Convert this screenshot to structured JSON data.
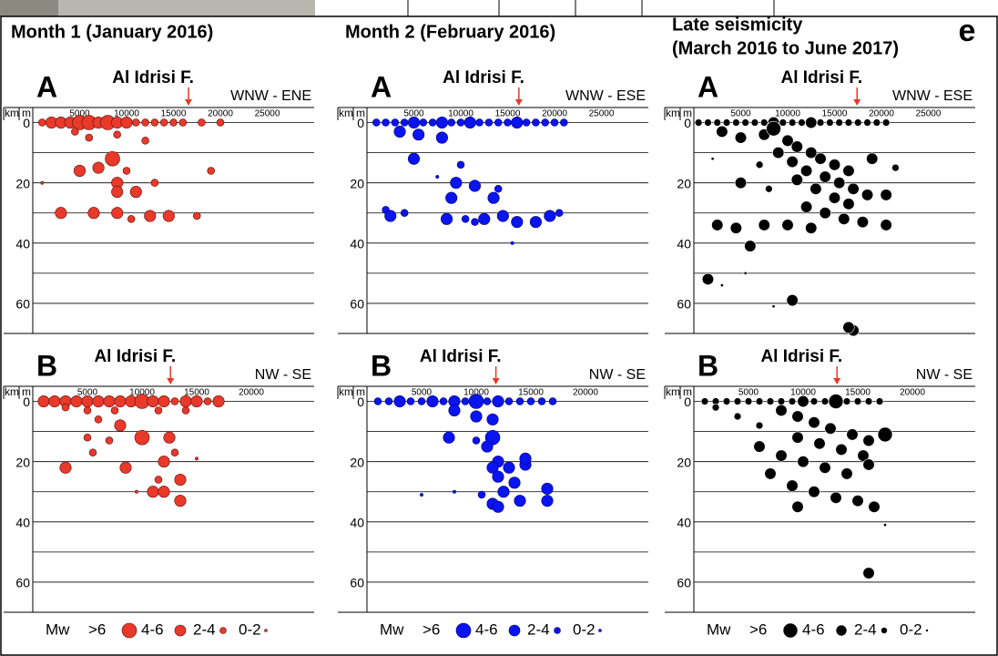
{
  "panel_label": "e",
  "columns": [
    {
      "title": [
        "Month 1 (January 2016)"
      ]
    },
    {
      "title": [
        "Month 2 (February 2016)"
      ]
    },
    {
      "title": [
        "Late seismicity",
        "(March 2016 to June 2017)"
      ]
    }
  ],
  "legend": {
    "title": "Mw",
    "classes": [
      ">6",
      "4-6",
      "2-4",
      "0-2"
    ]
  },
  "chart_data": [
    {
      "type": "scatter",
      "title": "A",
      "fault_label": "Al Idrisi F.",
      "direction": "WNW - ENE",
      "x_label": "m",
      "y_label": "km",
      "xlim": [
        0,
        30000
      ],
      "ylim": [
        -5,
        70
      ],
      "invert_y": true,
      "xticks": [
        5000,
        10000,
        15000,
        20000,
        25000
      ],
      "yticks": [
        0,
        20,
        40,
        60
      ],
      "ygrid": [
        0,
        10,
        20,
        30,
        40,
        50,
        60
      ],
      "fault_x": 16600,
      "color": "#e8392a",
      "edge_color": "#5a0f0a",
      "x": [
        1000,
        2000,
        3000,
        4000,
        5000,
        6000,
        7000,
        8000,
        9000,
        10000,
        11000,
        12000,
        13000,
        14000,
        15000,
        16000,
        18000,
        20000,
        4500,
        6000,
        9000,
        12000,
        8500,
        7000,
        5000,
        10000,
        19000,
        1000,
        9000,
        13000,
        9000,
        11000,
        3000,
        6500,
        9000,
        12500,
        14500,
        17500,
        10500
      ],
      "values": [
        0,
        0,
        0,
        0,
        0,
        0,
        0,
        0,
        0,
        0,
        0,
        0,
        0,
        0,
        0,
        0,
        0,
        0,
        3,
        5,
        4,
        6,
        12,
        15,
        16,
        16,
        16,
        20,
        20,
        20,
        23,
        23,
        30,
        30,
        30,
        31,
        31,
        31,
        32
      ],
      "sizes": [
        3,
        5,
        5,
        5,
        6.5,
        6.5,
        5,
        6.5,
        5,
        5,
        3,
        3,
        3,
        3,
        3,
        3,
        3,
        3,
        3,
        3,
        3,
        3,
        6.5,
        5,
        5,
        3,
        3,
        1,
        5,
        3,
        5,
        5,
        5,
        5,
        5,
        5,
        5,
        3,
        3
      ]
    },
    {
      "type": "scatter",
      "title": "A",
      "fault_label": "Al Idrisi F.",
      "direction": "WNW - ESE",
      "x_label": "m",
      "y_label": "km",
      "xlim": [
        0,
        30000
      ],
      "ylim": [
        -5,
        70
      ],
      "invert_y": true,
      "xticks": [
        5000,
        10000,
        15000,
        20000,
        25000
      ],
      "yticks": [
        0,
        20,
        40,
        60
      ],
      "ygrid": [
        0,
        10,
        20,
        30,
        40,
        50,
        60
      ],
      "fault_x": 16200,
      "color": "#0a14f0",
      "edge_color": "#00006e",
      "x": [
        1000,
        2000,
        3000,
        4000,
        5000,
        6000,
        7000,
        8000,
        9000,
        10000,
        11000,
        12000,
        13000,
        14000,
        15000,
        16000,
        17000,
        18000,
        19000,
        20000,
        21000,
        3500,
        5500,
        8000,
        5000,
        7500,
        10000,
        9500,
        11500,
        14000,
        9000,
        13500,
        2000,
        2500,
        8500,
        10500,
        12500,
        14500,
        16000,
        18000,
        19500,
        20500,
        15500,
        4000,
        11500
      ],
      "values": [
        0,
        0,
        0,
        0,
        0,
        0,
        0,
        0,
        0,
        0,
        0,
        0,
        0,
        0,
        0,
        0,
        0,
        0,
        0,
        0,
        0,
        3,
        4,
        5,
        12,
        18,
        14,
        20,
        21,
        22,
        25,
        25,
        29,
        31,
        32,
        32,
        32,
        31,
        33,
        33,
        31,
        30,
        40,
        30,
        33
      ],
      "sizes": [
        3,
        3,
        3,
        3,
        5,
        3,
        3,
        5,
        3,
        3,
        5,
        3,
        3,
        3,
        3,
        5,
        3,
        3,
        3,
        3,
        3,
        5,
        5,
        5,
        5,
        1,
        3,
        5,
        5,
        3,
        5,
        5,
        3,
        5,
        5,
        3,
        5,
        5,
        5,
        5,
        5,
        3,
        1,
        3,
        3
      ]
    },
    {
      "type": "scatter",
      "title": "A",
      "fault_label": "Al Idrisi F.",
      "direction": "WNW - ESE",
      "x_label": "m",
      "y_label": "km",
      "xlim": [
        0,
        30000
      ],
      "ylim": [
        -5,
        70
      ],
      "invert_y": true,
      "xticks": [
        5000,
        10000,
        15000,
        20000,
        25000
      ],
      "yticks": [
        0,
        20,
        40,
        60
      ],
      "ygrid": [
        0,
        10,
        20,
        30,
        40,
        50,
        60
      ],
      "fault_x": 17400,
      "color": "#000000",
      "edge_color": "#ffffff",
      "x": [
        500,
        1500,
        2500,
        3500,
        4500,
        5500,
        6500,
        7500,
        8500,
        9500,
        10500,
        11500,
        12500,
        13500,
        14500,
        15500,
        16500,
        17500,
        18500,
        19500,
        20500,
        3000,
        5000,
        7500,
        8500,
        10000,
        11000,
        12500,
        13500,
        15000,
        16500,
        9000,
        10500,
        12000,
        14000,
        15500,
        17000,
        11000,
        13000,
        15000,
        16500,
        18500,
        20500,
        7000,
        5000,
        8000,
        2000,
        12000,
        14000,
        16000,
        18000,
        20500,
        10000,
        7500,
        4500,
        2500,
        12500,
        6000,
        1500,
        5500,
        3000,
        10500,
        8500,
        17000,
        16500,
        21500,
        19000
      ],
      "values": [
        0,
        0,
        0,
        0,
        0,
        0,
        0,
        0,
        0,
        0,
        0,
        0,
        0,
        0,
        0,
        0,
        0,
        0,
        0,
        0,
        0,
        3,
        5,
        4,
        2,
        6,
        8,
        10,
        12,
        14,
        16,
        10,
        13,
        16,
        18,
        20,
        22,
        19,
        22,
        25,
        27,
        24,
        24,
        14,
        20,
        22,
        12,
        28,
        30,
        32,
        33,
        34,
        34,
        34,
        35,
        34,
        35,
        41,
        52,
        50,
        54,
        59,
        61,
        69,
        68,
        15,
        12
      ],
      "sizes": [
        3,
        3,
        3,
        3,
        3,
        3,
        3,
        3,
        5,
        3,
        3,
        3,
        5,
        3,
        3,
        3,
        3,
        3,
        3,
        3,
        3,
        5,
        5,
        5,
        6.5,
        5,
        5,
        5,
        5,
        5,
        5,
        5,
        5,
        5,
        5,
        5,
        5,
        5,
        5,
        5,
        5,
        5,
        5,
        3,
        5,
        3,
        1,
        5,
        5,
        5,
        5,
        5,
        5,
        5,
        5,
        5,
        5,
        5,
        5,
        1,
        1,
        5,
        1,
        5,
        5,
        3,
        5
      ]
    },
    {
      "type": "scatter",
      "title": "B",
      "fault_label": "Al Idrisi F.",
      "direction": "NW - SE",
      "x_label": "m",
      "y_label": "km",
      "xlim": [
        0,
        25750
      ],
      "ylim": [
        -5,
        70
      ],
      "invert_y": true,
      "xticks": [
        5000,
        10000,
        15000,
        20000
      ],
      "yticks": [
        0,
        20,
        40,
        60
      ],
      "ygrid": [
        0,
        10,
        20,
        30,
        40,
        50,
        60
      ],
      "fault_x": 12600,
      "color": "#e8392a",
      "edge_color": "#5a0f0a",
      "x": [
        1000,
        2000,
        3000,
        4000,
        5000,
        6000,
        7000,
        8000,
        9000,
        10000,
        11000,
        12000,
        13000,
        14000,
        15000,
        16000,
        17000,
        3000,
        5000,
        7500,
        11500,
        14000,
        8000,
        6000,
        5000,
        7000,
        10000,
        12500,
        5500,
        13000,
        3000,
        8500,
        12000,
        15000,
        11500,
        13500,
        9500,
        11000,
        12000,
        13500
      ],
      "values": [
        0,
        0,
        0,
        0,
        0,
        0,
        0,
        0,
        0,
        0,
        0,
        0,
        0,
        0,
        0,
        0,
        0,
        2,
        3,
        3,
        3,
        3,
        8,
        6,
        12,
        13,
        12,
        12,
        17,
        17,
        22,
        22,
        20,
        19,
        26,
        26,
        30,
        30,
        30,
        33
      ],
      "sizes": [
        5,
        5,
        5,
        5,
        5,
        5,
        5,
        5,
        5,
        6.5,
        5,
        5,
        3,
        5,
        5,
        3,
        5,
        3,
        3,
        3,
        3,
        3,
        5,
        3,
        3,
        3,
        6.5,
        5,
        3,
        3,
        5,
        5,
        5,
        1,
        3,
        5,
        1,
        5,
        5,
        5
      ]
    },
    {
      "type": "scatter",
      "title": "B",
      "fault_label": "Al Idrisi F.",
      "direction": "NW - SE",
      "x_label": "m",
      "y_label": "km",
      "xlim": [
        0,
        25750
      ],
      "ylim": [
        -5,
        70
      ],
      "invert_y": true,
      "xticks": [
        5000,
        10000,
        15000,
        20000
      ],
      "yticks": [
        0,
        20,
        40,
        60
      ],
      "ygrid": [
        0,
        10,
        20,
        30,
        40,
        50,
        60
      ],
      "fault_x": 11800,
      "color": "#0a14f0",
      "edge_color": "#00006e",
      "x": [
        1000,
        2000,
        3000,
        4000,
        5000,
        6000,
        7000,
        8000,
        9000,
        10000,
        11000,
        12000,
        13000,
        14000,
        15000,
        16000,
        17000,
        8000,
        10000,
        11500,
        7500,
        10000,
        11500,
        11000,
        12000,
        11500,
        13000,
        14500,
        12000,
        14500,
        16500,
        16500,
        5000,
        8000,
        10500,
        11500,
        12000,
        14000,
        12500,
        13500
      ],
      "values": [
        0,
        0,
        0,
        0,
        0,
        0,
        0,
        0,
        0,
        0,
        0,
        0,
        0,
        0,
        0,
        0,
        0,
        3,
        5,
        6,
        12,
        13,
        12,
        15,
        20,
        22,
        22,
        21,
        25,
        19,
        29,
        33,
        31,
        30,
        31,
        34,
        35,
        33,
        30,
        27
      ],
      "sizes": [
        3,
        3,
        5,
        3,
        3,
        5,
        3,
        5,
        3,
        6.5,
        3,
        5,
        3,
        3,
        3,
        3,
        3,
        5,
        5,
        5,
        5,
        3,
        6.5,
        5,
        5,
        5,
        5,
        5,
        5,
        5,
        5,
        5,
        1,
        1,
        3,
        5,
        5,
        5,
        5,
        5
      ]
    },
    {
      "type": "scatter",
      "title": "B",
      "fault_label": "Al Idrisi F.",
      "direction": "NW - SE",
      "x_label": "m",
      "y_label": "km",
      "xlim": [
        0,
        25750
      ],
      "ylim": [
        -5,
        70
      ],
      "invert_y": true,
      "xticks": [
        5000,
        10000,
        15000,
        20000
      ],
      "yticks": [
        0,
        20,
        40,
        60
      ],
      "ygrid": [
        0,
        10,
        20,
        30,
        40,
        50,
        60
      ],
      "fault_x": 13100,
      "color": "#000000",
      "edge_color": "#ffffff",
      "x": [
        1000,
        2000,
        3000,
        4000,
        5000,
        6000,
        7000,
        8000,
        9000,
        10000,
        11000,
        12000,
        13000,
        14000,
        15000,
        16000,
        17000,
        2000,
        4000,
        6000,
        8000,
        9500,
        11000,
        12500,
        14500,
        16000,
        17500,
        9500,
        11500,
        13500,
        15500,
        6000,
        8000,
        10000,
        12000,
        14000,
        16000,
        7000,
        9000,
        11000,
        13000,
        15000,
        16500,
        17500,
        16000,
        9500
      ],
      "values": [
        0,
        0,
        0,
        0,
        0,
        0,
        0,
        0,
        0,
        0,
        0,
        0,
        0,
        0,
        0,
        0,
        0,
        2,
        5,
        8,
        3,
        5,
        7,
        9,
        11,
        13,
        11,
        12,
        14,
        16,
        18,
        15,
        18,
        20,
        22,
        24,
        21,
        24,
        28,
        30,
        32,
        33,
        35,
        41,
        57,
        35
      ],
      "sizes": [
        3,
        3,
        3,
        3,
        3,
        3,
        3,
        3,
        3,
        5,
        3,
        3,
        6.5,
        3,
        3,
        3,
        3,
        3,
        3,
        3,
        5,
        5,
        5,
        5,
        5,
        5,
        6.5,
        5,
        5,
        5,
        5,
        5,
        5,
        5,
        5,
        5,
        5,
        5,
        5,
        5,
        5,
        5,
        5,
        1,
        5,
        5
      ]
    }
  ]
}
